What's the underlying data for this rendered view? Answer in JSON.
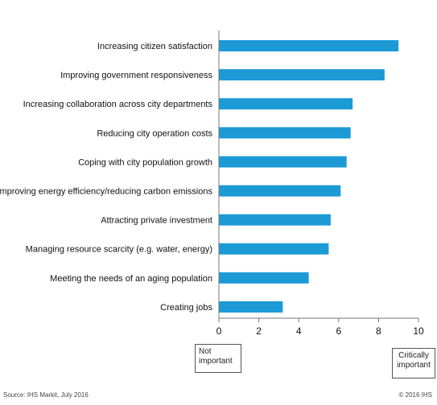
{
  "chart_data": {
    "type": "bar",
    "orientation": "horizontal",
    "categories": [
      "Increasing citizen satisfaction",
      "Improving government responsiveness",
      "Increasing collaboration across city departments",
      "Reducing city operation costs",
      "Coping with city population growth",
      "Improving energy efficiency/reducing carbon emissions",
      "Attracting private investment",
      "Managing resource scarcity (e.g. water, energy)",
      "Meeting the needs of an aging population",
      "Creating jobs"
    ],
    "values": [
      9.0,
      8.3,
      6.7,
      6.6,
      6.4,
      6.1,
      5.6,
      5.5,
      4.5,
      3.2
    ],
    "xlim": [
      0,
      10
    ],
    "xticks": [
      "0",
      "2",
      "4",
      "6",
      "8",
      "10"
    ],
    "bar_color": "#1b9ad6",
    "grid": false,
    "legend": "none",
    "title": "",
    "xlabel": "",
    "ylabel": ""
  },
  "scale_labels": {
    "low": "Not important",
    "high": "Critically important"
  },
  "footer": {
    "source": "Source: IHS Markit, July 2016",
    "copyright": "© 2016 IHS"
  }
}
